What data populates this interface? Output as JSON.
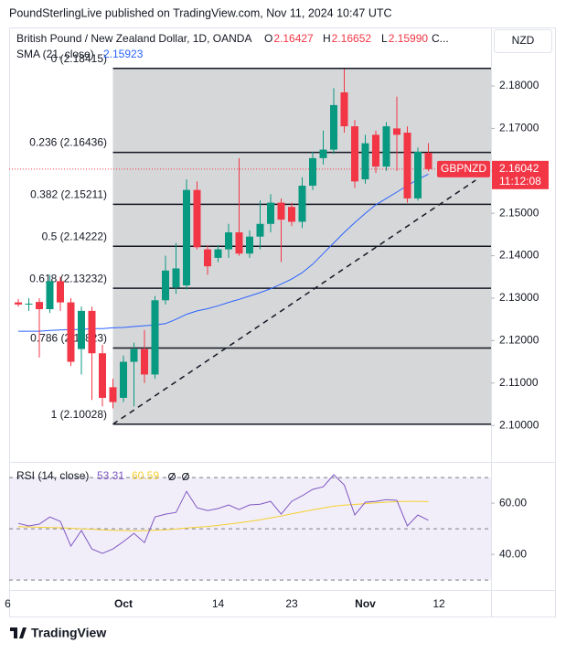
{
  "header": {
    "published": "PoundSterlingLive published on TradingView.com, Nov 11, 2024 10:47 UTC"
  },
  "chart_data": {
    "type": "candlestick",
    "title": "British Pound / New Zealand Dollar, 1D, OANDA",
    "legend": [
      {
        "label": "O",
        "value": "2.16427"
      },
      {
        "label": "H",
        "value": "2.16652"
      },
      {
        "label": "L",
        "value": "2.15990"
      }
    ],
    "legend_more": "C...",
    "currency": "NZD",
    "symbol": "GBPNZD",
    "countdown": "11:12:08",
    "up_color": "#089981",
    "down_color": "#f23645",
    "categories": [
      "6",
      null,
      null,
      null,
      null,
      null,
      null,
      null,
      null,
      null,
      null,
      "Oct",
      null,
      null,
      null,
      null,
      null,
      null,
      null,
      null,
      "14",
      null,
      null,
      null,
      null,
      null,
      null,
      "23",
      null,
      null,
      null,
      null,
      null,
      null,
      "Nov",
      null,
      null,
      null,
      null,
      null,
      null,
      "12"
    ],
    "open": [
      null,
      2.129,
      2.1285,
      2.1291,
      2.1274,
      2.134,
      2.129,
      2.118,
      2.127,
      2.117,
      2.109,
      2.1065,
      2.115,
      2.118,
      2.112,
      2.1295,
      2.1325,
      2.133,
      2.1555,
      2.1415,
      2.1395,
      2.1415,
      2.1455,
      2.1405,
      2.1445,
      2.1475,
      2.1525,
      2.1515,
      2.148,
      2.1565,
      2.163,
      2.165,
      2.1785,
      2.1705,
      2.158,
      2.1685,
      2.161,
      2.17,
      2.169,
      2.1535,
      2.16427,
      null
    ],
    "high": [
      null,
      2.1298,
      2.13,
      2.13,
      2.1355,
      2.135,
      2.13,
      2.128,
      2.128,
      2.119,
      2.111,
      2.1165,
      2.1195,
      2.1225,
      2.1305,
      2.14,
      2.143,
      2.158,
      2.1575,
      2.1425,
      2.1425,
      2.1475,
      2.163,
      2.146,
      2.153,
      2.1545,
      2.1535,
      2.1525,
      2.1585,
      2.1645,
      2.1695,
      2.1795,
      2.184,
      2.172,
      2.1685,
      2.1695,
      2.1715,
      2.1775,
      2.1705,
      2.1655,
      2.16652,
      null
    ],
    "low": [
      null,
      2.128,
      2.127,
      2.116,
      2.1265,
      2.127,
      2.114,
      2.112,
      2.106,
      2.1045,
      2.104,
      2.1055,
      2.1045,
      2.11,
      2.111,
      2.1285,
      2.131,
      2.132,
      2.1415,
      2.1355,
      2.1385,
      2.1395,
      2.14,
      2.1395,
      2.1415,
      2.1455,
      2.1385,
      2.147,
      2.1465,
      2.1555,
      2.1615,
      2.164,
      2.169,
      2.156,
      2.157,
      2.1595,
      2.16,
      2.16,
      2.1525,
      2.153,
      2.1599,
      null
    ],
    "close": [
      null,
      2.1285,
      2.1287,
      2.1274,
      2.134,
      2.129,
      2.115,
      2.127,
      2.117,
      2.1065,
      2.1055,
      2.115,
      2.118,
      2.112,
      2.1295,
      2.1365,
      2.137,
      2.1555,
      2.142,
      2.1375,
      2.1415,
      2.1455,
      2.1405,
      2.1445,
      2.1475,
      2.1525,
      2.1485,
      2.148,
      2.1565,
      2.163,
      2.165,
      2.1755,
      2.1705,
      2.1575,
      2.1665,
      2.161,
      2.1705,
      2.1685,
      2.1535,
      2.1645,
      2.16042,
      null
    ],
    "sma": {
      "name": "SMA (21, close)",
      "color": "#2962ff",
      "values": [
        null,
        2.1222,
        2.1222,
        2.1222,
        2.1224,
        2.1225,
        2.1226,
        2.1226,
        2.1228,
        2.1228,
        2.123,
        2.1231,
        2.1233,
        2.1235,
        2.1237,
        2.124,
        2.125,
        2.1262,
        2.127,
        2.1275,
        2.1282,
        2.129,
        2.1297,
        2.1305,
        2.1313,
        2.1322,
        2.1333,
        2.1345,
        2.136,
        2.138,
        2.1405,
        2.143,
        2.1455,
        2.1478,
        2.15,
        2.152,
        2.1535,
        2.155,
        2.1565,
        2.158,
        2.15923,
        null
      ]
    },
    "fib_levels": [
      {
        "value": 2.18415,
        "label": "0 (2.18415)"
      },
      {
        "value": 2.16436,
        "label": "0.236 (2.16436)"
      },
      {
        "value": 2.15211,
        "label": "0.382 (2.15211)"
      },
      {
        "value": 2.14222,
        "label": "0.5 (2.14222)"
      },
      {
        "value": 2.13232,
        "label": "0.618 (2.13232)"
      },
      {
        "value": 2.11823,
        "label": "0.786 (2.11823)"
      },
      {
        "value": 2.10028,
        "label": "1 (2.10028)"
      }
    ],
    "trendline": {
      "x": [
        10,
        44.5
      ],
      "y": [
        2.1003,
        2.1578
      ]
    },
    "ylim": [
      2.0914,
      2.1938
    ],
    "yticks": [
      {
        "value": 2.18,
        "label": "2.18000"
      },
      {
        "value": 2.17,
        "label": "2.17000"
      },
      {
        "value": 2.16,
        "label": "2.16000"
      },
      {
        "value": 2.15,
        "label": "2.15000"
      },
      {
        "value": 2.14,
        "label": "2.14000"
      },
      {
        "value": 2.13,
        "label": "2.13000"
      },
      {
        "value": 2.12,
        "label": "2.12000"
      },
      {
        "value": 2.11,
        "label": "2.11000"
      },
      {
        "value": 2.1,
        "label": "2.10000"
      }
    ],
    "rsi": {
      "name": "RSI (14, close)",
      "color": "#7e57c2",
      "values": [
        null,
        52.1,
        51.1,
        51.8,
        54.6,
        52.9,
        43.2,
        49.3,
        42.1,
        40.4,
        42.1,
        45.0,
        48.2,
        44.6,
        54.6,
        55.7,
        56.4,
        64.6,
        58.2,
        57.1,
        57.9,
        59.3,
        57.5,
        59.3,
        59.6,
        60.7,
        55.7,
        60.7,
        62.9,
        65.4,
        66.4,
        71.1,
        67.1,
        55.4,
        60.4,
        60.7,
        61.4,
        61.1,
        51.1,
        55.4,
        53.31,
        null
      ],
      "ma_color": "#f5d02f",
      "ma_values": [
        null,
        50.8,
        50.7,
        50.6,
        50.5,
        50.4,
        50.2,
        50.0,
        49.8,
        49.6,
        49.4,
        49.3,
        49.2,
        49.2,
        49.4,
        49.6,
        49.9,
        50.3,
        50.6,
        50.9,
        51.3,
        51.8,
        52.3,
        52.9,
        53.5,
        54.2,
        55.0,
        55.8,
        56.6,
        57.4,
        58.1,
        58.8,
        59.2,
        59.5,
        59.8,
        60.1,
        60.4,
        60.6,
        60.7,
        60.7,
        60.59,
        null
      ],
      "ylim": [
        26.1,
        76.1
      ],
      "yticks": [
        {
          "value": 60,
          "label": "60.00"
        },
        {
          "value": 40,
          "label": "40.00"
        }
      ],
      "bands": [
        70,
        50,
        30
      ]
    }
  },
  "footer": {
    "brand": "TradingView"
  }
}
